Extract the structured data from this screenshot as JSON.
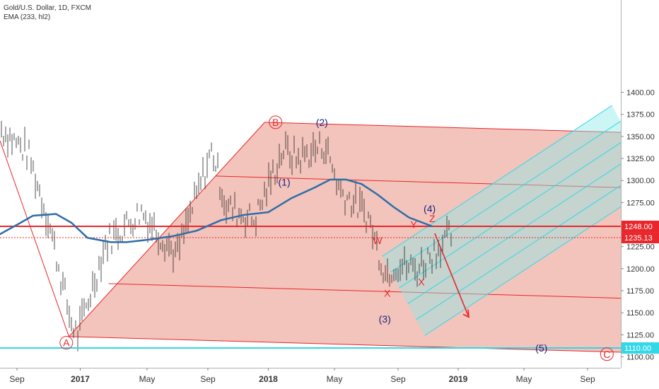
{
  "chart_data": {
    "type": "line",
    "title": "Gold/U.S. Dollar, 1D, FXCM",
    "subtitle": "EMA (233, hl2)",
    "x_ticks": [
      "Sep",
      "2017",
      "May",
      "Sep",
      "2018",
      "May",
      "Sep",
      "2019",
      "May",
      "Sep"
    ],
    "y_ticks": [
      1100,
      1125,
      1150,
      1175,
      1200,
      1225,
      1250,
      1275,
      1300,
      1325,
      1350,
      1375,
      1400
    ],
    "ylim": [
      1095,
      1415
    ],
    "grid": false,
    "price_labels": [
      {
        "value": 1248.0,
        "text": "1248.00",
        "bg": "#e8262b"
      },
      {
        "value": 1235.13,
        "text": "1235.13",
        "bg": "#e8262b"
      },
      {
        "value": 1110.0,
        "text": "1110.00",
        "bg": "#31d8e6"
      }
    ],
    "horizontal_lines": [
      {
        "value": 1248.0,
        "color": "#e8262b",
        "style": "solid"
      },
      {
        "value": 1235.13,
        "color": "#e8262b",
        "style": "dotted"
      },
      {
        "value": 1110.0,
        "color": "#31d8e6",
        "style": "solid"
      }
    ],
    "series": [
      {
        "color": "#2d6ea8",
        "x": [
          "2016-07-01",
          "2016-09-01",
          "2016-10-01",
          "2016-11-15",
          "2016-12-15",
          "2017-01-15",
          "2017-03-01",
          "2017-04-01",
          "2017-05-15",
          "2017-07-01",
          "2017-08-15",
          "2017-10-01",
          "2017-11-15",
          "2018-01-01",
          "2018-02-15",
          "2018-04-01",
          "2018-05-01",
          "2018-06-01",
          "2018-07-01",
          "2018-08-01",
          "2018-09-01",
          "2018-10-01",
          "2018-11-15"
        ],
        "values": [
          1230,
          1250,
          1260,
          1262,
          1252,
          1235,
          1230,
          1230,
          1233,
          1237,
          1243,
          1255,
          1261,
          1264,
          1280,
          1292,
          1301,
          1301,
          1296,
          1284,
          1270,
          1258,
          1248
        ]
      }
    ],
    "annotations": [
      {
        "text": "B",
        "x": "2018-01-15",
        "y": 1366,
        "color": "#e8262b",
        "circled": true
      },
      {
        "text": "(2)",
        "x": "2018-04-15",
        "y": 1366,
        "color": "#1a237e"
      },
      {
        "text": "(1)",
        "x": "2018-02-01",
        "y": 1298,
        "color": "#1a237e"
      },
      {
        "text": "A",
        "x": "2016-12-05",
        "y": 1116,
        "color": "#e8262b",
        "circled": true
      },
      {
        "text": "W",
        "x": "2018-08-01",
        "y": 1232,
        "color": "#e8262b"
      },
      {
        "text": "X",
        "x": "2018-08-20",
        "y": 1172,
        "color": "#e8262b"
      },
      {
        "text": "Y",
        "x": "2018-10-10",
        "y": 1250,
        "color": "#e8262b"
      },
      {
        "text": "X",
        "x": "2018-10-25",
        "y": 1185,
        "color": "#e8262b"
      },
      {
        "text": "Z",
        "x": "2018-11-15",
        "y": 1257,
        "color": "#e8262b"
      },
      {
        "text": "(4)",
        "x": "2018-11-10",
        "y": 1268,
        "color": "#1a237e"
      },
      {
        "text": "(3)",
        "x": "2018-08-15",
        "y": 1143,
        "color": "#1a237e"
      },
      {
        "text": "(5)",
        "x": "2019-06-15",
        "y": 1110,
        "color": "#1a237e"
      },
      {
        "text": "C",
        "x": "2019-10-20",
        "y": 1103,
        "color": "#e8262b",
        "circled": true
      }
    ]
  }
}
